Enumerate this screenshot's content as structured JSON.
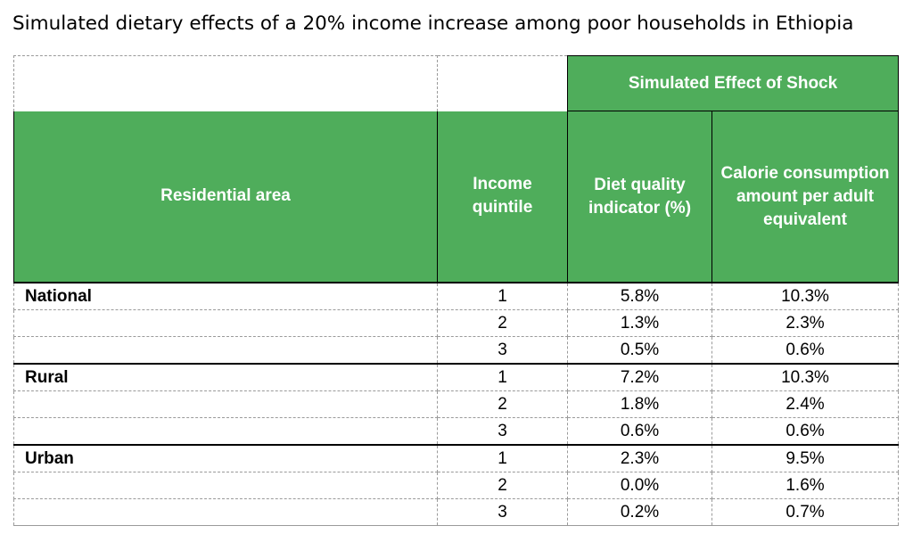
{
  "title": "Simulated dietary effects of a 20% income increase among poor households in Ethiopia",
  "chart_data": {
    "type": "table",
    "group_header": "Simulated Effect of Shock",
    "columns": [
      "Residential area",
      "Income quintile",
      "Diet quality indicator (%)",
      "Calorie consumption amount per adult equivalent"
    ],
    "rows": [
      {
        "area": "National",
        "quintile": "1",
        "diet": "5.8%",
        "calorie": "10.3%"
      },
      {
        "area": "",
        "quintile": "2",
        "diet": "1.3%",
        "calorie": "2.3%"
      },
      {
        "area": "",
        "quintile": "3",
        "diet": "0.5%",
        "calorie": "0.6%"
      },
      {
        "area": "Rural",
        "quintile": "1",
        "diet": "7.2%",
        "calorie": "10.3%"
      },
      {
        "area": "",
        "quintile": "2",
        "diet": "1.8%",
        "calorie": "2.4%"
      },
      {
        "area": "",
        "quintile": "3",
        "diet": "0.6%",
        "calorie": "0.6%"
      },
      {
        "area": "Urban",
        "quintile": "1",
        "diet": "2.3%",
        "calorie": "9.5%"
      },
      {
        "area": "",
        "quintile": "2",
        "diet": "0.0%",
        "calorie": "1.6%"
      },
      {
        "area": "",
        "quintile": "3",
        "diet": "0.2%",
        "calorie": "0.7%"
      }
    ],
    "colors": {
      "header_green": "#4FAD5B",
      "header_text": "#FFFFFF"
    }
  }
}
